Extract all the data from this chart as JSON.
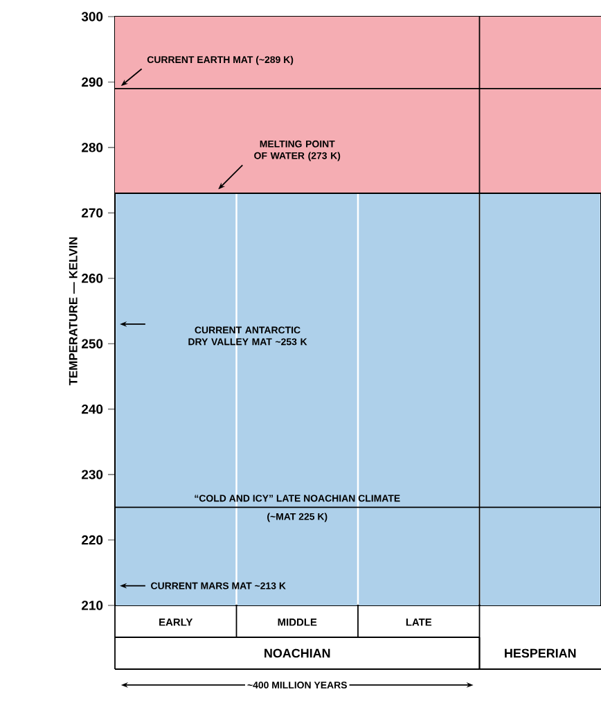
{
  "chart_data": {
    "type": "bar",
    "ylabel": "TEMPERATURE — KELVIN",
    "categories": [
      "EARLY",
      "MIDDLE",
      "LATE",
      null
    ],
    "ylim": [
      210,
      300
    ],
    "yticks": [
      210,
      220,
      230,
      240,
      250,
      260,
      270,
      280,
      290,
      300
    ],
    "series": [
      {
        "color": "#aed0ea",
        "values": [
          273,
          273,
          273,
          273
        ]
      }
    ],
    "bands": [
      {
        "axis": "y",
        "from": 273,
        "to": 300,
        "color": "#f5adb3"
      }
    ],
    "ref_lines": [
      {
        "axis": "y",
        "value": 289,
        "label": "CURRENT EARTH MAT (~289 K)"
      },
      {
        "axis": "y",
        "value": 273,
        "label": "MELTING POINT OF WATER (273 K)"
      },
      {
        "axis": "y",
        "value": 225,
        "label": "“COLD AND ICY” LATE NOACHIAN CLIMATE"
      }
    ],
    "annotations": [
      "CURRENT ANTARCTIC DRY VALLEY MAT ~253 K",
      {
        "text": "(~MAT 225 K)",
        "y": 225
      },
      "CURRENT MARS MAT ~213 K",
      "NOACHIAN",
      "HESPERIAN",
      "~400 MILLION YEARS"
    ]
  }
}
